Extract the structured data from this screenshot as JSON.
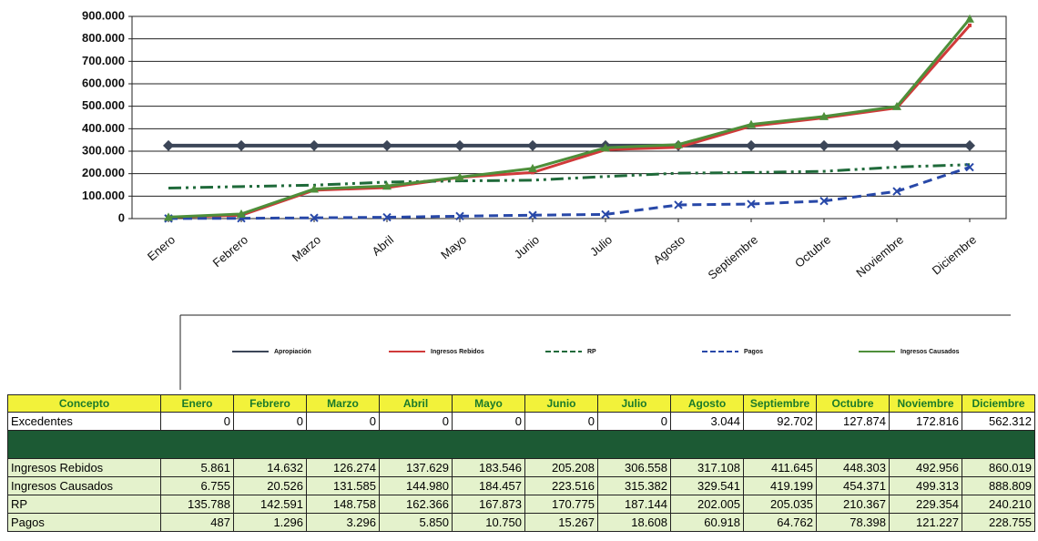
{
  "chart_data": {
    "type": "line",
    "categories": [
      "Enero",
      "Febrero",
      "Marzo",
      "Abril",
      "Mayo",
      "Junio",
      "Julio",
      "Agosto",
      "Septiembre",
      "Octubre",
      "Noviembre",
      "Diciembre"
    ],
    "series": [
      {
        "name": "Apropiación",
        "color": "#3c4658",
        "values": [
          325000,
          325000,
          325000,
          325000,
          325000,
          325000,
          325000,
          325000,
          325000,
          325000,
          325000,
          325000
        ]
      },
      {
        "name": "Ingresos Rebidos",
        "color": "#d03a3a",
        "values": [
          5861,
          14632,
          126274,
          137629,
          183546,
          205208,
          306558,
          317108,
          411645,
          448303,
          492956,
          860019
        ]
      },
      {
        "name": "RP",
        "color": "#1f6a3a",
        "values": [
          135788,
          142591,
          148758,
          162366,
          167873,
          170775,
          187144,
          202005,
          205035,
          210367,
          229354,
          240210
        ]
      },
      {
        "name": "Pagos",
        "color": "#2848a8",
        "values": [
          487,
          1296,
          3296,
          5850,
          10750,
          15267,
          18608,
          60918,
          64762,
          78398,
          121227,
          228755
        ]
      },
      {
        "name": "Ingresos Causados",
        "color": "#4e8f3a",
        "values": [
          6755,
          20526,
          131585,
          144980,
          184457,
          223516,
          315382,
          329541,
          419199,
          454371,
          499313,
          888809
        ]
      }
    ],
    "ylim": [
      0,
      900000
    ],
    "yticks": [
      0,
      {
        "value": 100000,
        "label": "100.000"
      },
      {
        "value": 200000,
        "label": "200.000"
      },
      {
        "value": 300000,
        "label": "300.000"
      },
      {
        "value": 400000,
        "label": "400.000"
      },
      {
        "value": 500000,
        "label": "500.000"
      },
      {
        "value": 600000,
        "label": "600.000"
      },
      {
        "value": 700000,
        "label": "700.000"
      },
      {
        "value": 800000,
        "label": "800.000"
      },
      {
        "value": 900000,
        "label": "900.000"
      }
    ],
    "grid": true
  },
  "table": {
    "header": [
      "Concepto",
      "Enero",
      "Febrero",
      "Marzo",
      "Abril",
      "Mayo",
      "Junio",
      "Julio",
      "Agosto",
      "Septiembre",
      "Octubre",
      "Noviembre",
      "Diciembre"
    ],
    "rows": [
      [
        "Excedentes",
        "0",
        "0",
        "0",
        "0",
        "0",
        "0",
        "0",
        "3.044",
        "92.702",
        "127.874",
        "172.816",
        "562.312"
      ],
      [
        "Ingresos Rebidos",
        "5.861",
        "14.632",
        "126.274",
        "137.629",
        "183.546",
        "205.208",
        "306.558",
        "317.108",
        "411.645",
        "448.303",
        "492.956",
        "860.019"
      ],
      [
        "Ingresos Causados",
        "6.755",
        "20.526",
        "131.585",
        "144.980",
        "184.457",
        "223.516",
        "315.382",
        "329.541",
        "419.199",
        "454.371",
        "499.313",
        "888.809"
      ],
      [
        "RP",
        "135.788",
        "142.591",
        "148.758",
        "162.366",
        "167.873",
        "170.775",
        "187.144",
        "202.005",
        "205.035",
        "210.367",
        "229.354",
        "240.210"
      ],
      [
        "Pagos",
        "487",
        "1.296",
        "3.296",
        "5.850",
        "10.750",
        "15.267",
        "18.608",
        "60.918",
        "64.762",
        "78.398",
        "121.227",
        "228.755"
      ]
    ]
  }
}
